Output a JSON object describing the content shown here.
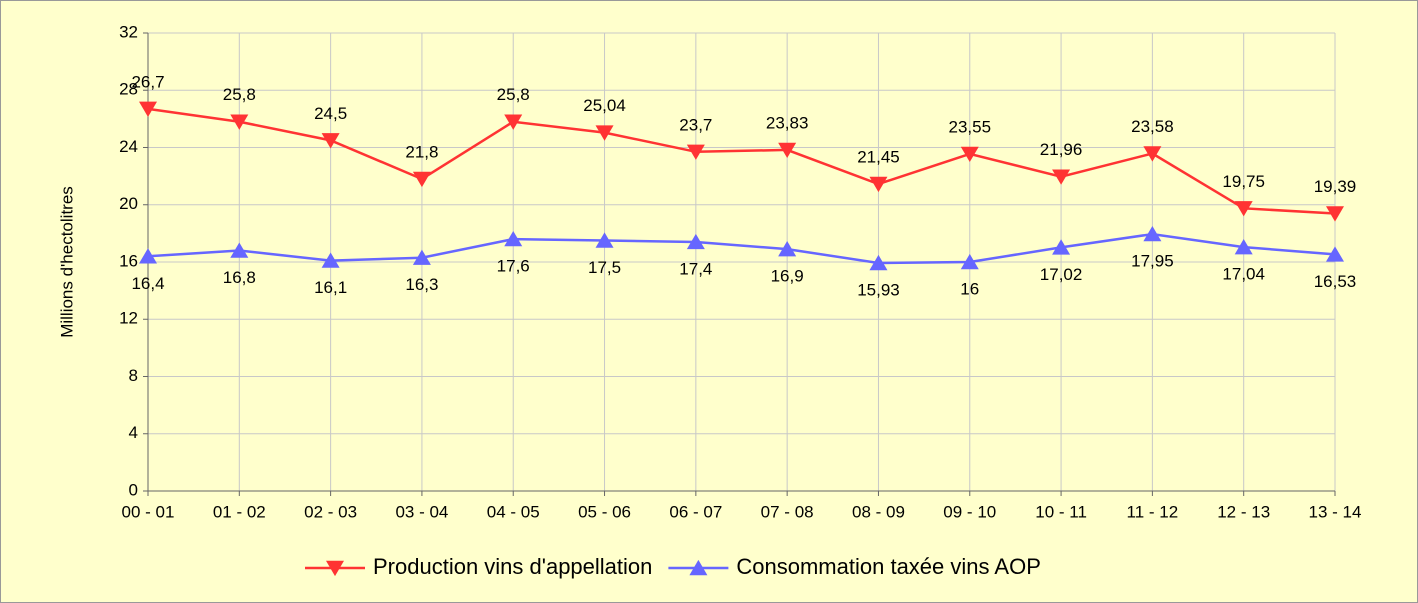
{
  "chart_data": {
    "type": "line",
    "y_label": "Millions d'hectolitres",
    "categories": [
      "00 - 01",
      "01 - 02",
      "02 - 03",
      "03 - 04",
      "04 - 05",
      "05 - 06",
      "06 - 07",
      "07 - 08",
      "08 - 09",
      "09 - 10",
      "10 - 11",
      "11 - 12",
      "12 - 13",
      "13 - 14"
    ],
    "series": [
      {
        "name": "Production vins d'appellation",
        "color": "#ff3333",
        "marker": "triangle-down",
        "label_position": "above",
        "values": [
          26.7,
          25.8,
          24.5,
          21.8,
          25.8,
          25.04,
          23.7,
          23.83,
          21.45,
          23.55,
          21.96,
          23.58,
          19.75,
          19.39
        ],
        "value_labels": [
          "26,7",
          "25,8",
          "24,5",
          "21,8",
          "25,8",
          "25,04",
          "23,7",
          "23,83",
          "21,45",
          "23,55",
          "21,96",
          "23,58",
          "19,75",
          "19,39"
        ]
      },
      {
        "name": "Consommation taxée vins AOP",
        "color": "#6666ff",
        "marker": "triangle-up",
        "label_position": "below",
        "values": [
          16.4,
          16.8,
          16.1,
          16.3,
          17.6,
          17.5,
          17.4,
          16.9,
          15.93,
          16,
          17.02,
          17.95,
          17.04,
          16.53
        ],
        "value_labels": [
          "16,4",
          "16,8",
          "16,1",
          "16,3",
          "17,6",
          "17,5",
          "17,4",
          "16,9",
          "15,93",
          "16",
          "17,02",
          "17,95",
          "17,04",
          "16,53"
        ]
      }
    ],
    "ylim": [
      0,
      32
    ],
    "yticks": [
      0,
      4,
      8,
      12,
      16,
      20,
      24,
      28,
      32
    ],
    "grid": true,
    "legend": "bottom"
  }
}
